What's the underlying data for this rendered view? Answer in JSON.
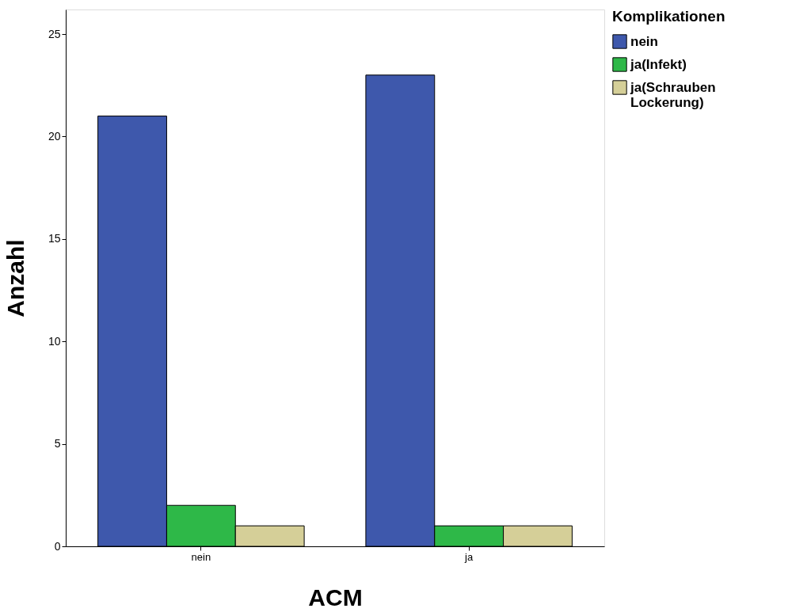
{
  "chart_data": {
    "type": "bar",
    "xlabel": "ACM",
    "ylabel": "Anzahl",
    "legend_title": "Komplikationen",
    "categories": [
      "nein",
      "ja"
    ],
    "series": [
      {
        "name": "nein",
        "color": "#3e58ac",
        "values": [
          21,
          23
        ]
      },
      {
        "name": "ja(Infekt)",
        "color": "#2eb848",
        "values": [
          2,
          1
        ]
      },
      {
        "name": "ja(Schrauben\nLockerung)",
        "color": "#d5cf98",
        "values": [
          1,
          1
        ]
      }
    ],
    "ylim": [
      0,
      26.2
    ],
    "yticks": [
      0,
      5,
      10,
      15,
      20,
      25
    ],
    "grid": false,
    "legend": "top right"
  }
}
